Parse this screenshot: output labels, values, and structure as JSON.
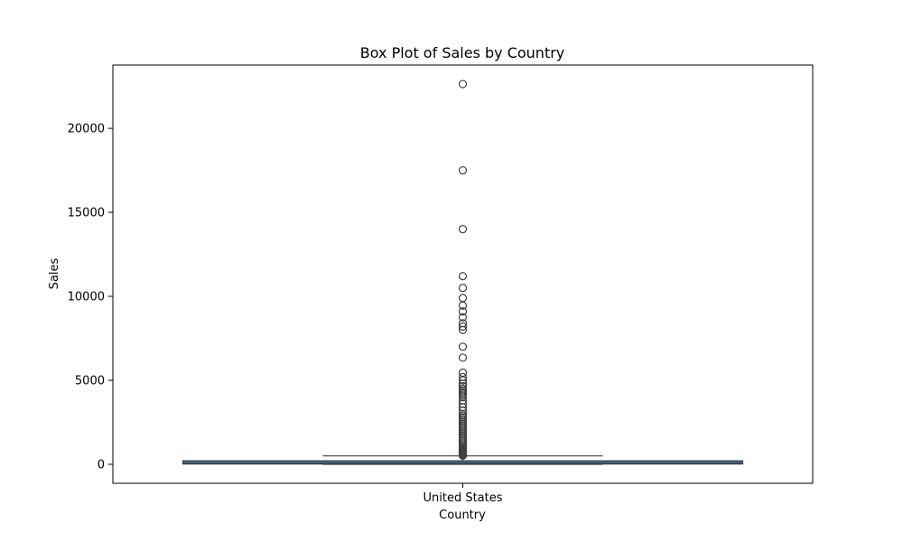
{
  "chart_data": {
    "type": "box",
    "title": "Box Plot of Sales by Country",
    "xlabel": "Country",
    "ylabel": "Sales",
    "categories": [
      "United States"
    ],
    "ylim": [
      -1130,
      23770
    ],
    "yticks": [
      "0",
      "5000",
      "10000",
      "15000",
      "20000"
    ],
    "ytick_values": [
      0,
      5000,
      10000,
      15000,
      20000
    ],
    "grid": false,
    "legend": "none",
    "boxes": [
      {
        "category": "United States",
        "min": 0.44,
        "q1": 17.3,
        "median": 54.5,
        "q3": 209.9,
        "max": 498.9,
        "color": "#3c6c94",
        "outliers": [
          22638,
          17500,
          13999,
          11200,
          10499,
          9900,
          9450,
          9100,
          8750,
          8400,
          8200,
          8000,
          7000,
          6350,
          5450,
          5200,
          5000,
          4800,
          4650,
          4500,
          4400,
          4300,
          4200,
          4100,
          4000,
          3800,
          3600,
          3400,
          3200,
          3000,
          2900,
          2800,
          2700,
          2600,
          2500,
          2400,
          2300,
          2200,
          2100,
          2000,
          1900,
          1800,
          1700,
          1600,
          1500,
          1400,
          1300,
          1200,
          1100,
          1000,
          950,
          900,
          850,
          800,
          750,
          700,
          650,
          600,
          550,
          520
        ]
      }
    ]
  }
}
